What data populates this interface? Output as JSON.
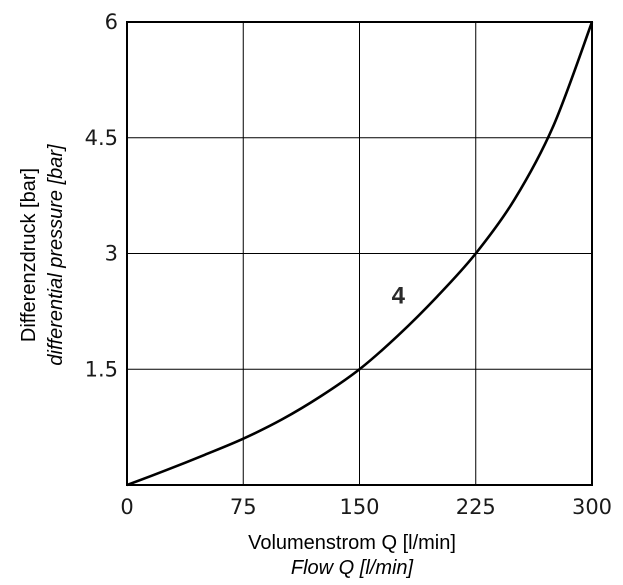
{
  "chart_data": {
    "type": "line",
    "title": "",
    "xlabel": "Volumenstrom Q [l/min]",
    "xlabel_secondary": "Flow Q [l/min]",
    "ylabel": "Differenzdruck [bar]",
    "ylabel_secondary": "differential pressure [bar]",
    "xlim": [
      0,
      300
    ],
    "ylim": [
      0,
      6
    ],
    "x_ticks": [
      "0",
      "75",
      "150",
      "225",
      "300"
    ],
    "y_ticks": [
      "1.5",
      "3",
      "4.5",
      "6"
    ],
    "grid": true,
    "series": [
      {
        "name": "4",
        "x": [
          0,
          25,
          50,
          75,
          100,
          125,
          150,
          175,
          200,
          225,
          250,
          275,
          300
        ],
        "y": [
          0,
          0.19,
          0.39,
          0.6,
          0.85,
          1.15,
          1.5,
          1.94,
          2.44,
          3.0,
          3.7,
          4.65,
          6.0
        ]
      }
    ],
    "colors": {
      "curve": "#000000",
      "grid": "#000000",
      "axis": "#000000"
    }
  }
}
